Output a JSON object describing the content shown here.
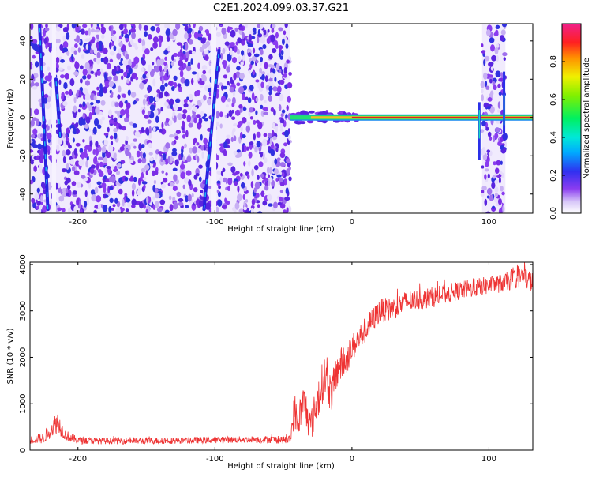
{
  "title": "C2E1.2024.099.03.37.G21",
  "chart_data": [
    {
      "type": "heatmap",
      "xlabel": "Height of straight line (km)",
      "ylabel": "Frequency (Hz)",
      "xlim": [
        -235,
        132
      ],
      "ylim": [
        -50,
        49
      ],
      "xticks": [
        -200,
        -100,
        0,
        100
      ],
      "yticks": [
        -40,
        -20,
        0,
        20,
        40
      ],
      "grid": false,
      "colorbar": {
        "label": "Normalized spectral amplitude",
        "range": [
          0,
          1
        ],
        "ticks": [
          "0.0",
          "0.2",
          "0.4",
          "0.6",
          "0.8"
        ],
        "tick_values": [
          0,
          0.2,
          0.4,
          0.6,
          0.8
        ],
        "colormap": "rainbow (white-violet-blue-cyan-green-yellow-red-magenta)"
      },
      "features": {
        "noise_regions_x": [
          [
            -235,
            -45
          ],
          [
            95,
            112
          ]
        ],
        "signal_line_freq_hz": 0,
        "signal_line_x": [
          -45,
          132
        ],
        "diagonal_streaks": [
          {
            "x": [
              -222,
              -228
            ],
            "y": [
              -48,
              48
            ]
          },
          {
            "x": [
              -108,
              -97
            ],
            "y": [
              -48,
              35
            ]
          },
          {
            "x": [
              -213,
              -216
            ],
            "y": [
              -10,
              20
            ]
          }
        ]
      }
    },
    {
      "type": "line",
      "xlabel": "Height of straight line (km)",
      "ylabel": "SNR (10 * v/v)",
      "xlim": [
        -235,
        132
      ],
      "ylim": [
        0,
        4050
      ],
      "xticks": [
        -200,
        -100,
        0,
        100
      ],
      "yticks": [
        0,
        1000,
        2000,
        3000,
        4000
      ],
      "grid": false,
      "color": "#ee3333",
      "series": [
        {
          "x": [
            -235,
            -225,
            -215,
            -210,
            -205,
            -200,
            -180,
            -150,
            -120,
            -100,
            -80,
            -60,
            -45,
            -42,
            -40,
            -35,
            -30,
            -25,
            -20,
            -15,
            -10,
            -5,
            0,
            10,
            20,
            30,
            40,
            60,
            80,
            100,
            110,
            120,
            125,
            132
          ],
          "y": [
            220,
            260,
            620,
            350,
            260,
            210,
            200,
            200,
            210,
            220,
            230,
            230,
            220,
            900,
            600,
            1000,
            500,
            1100,
            1600,
            1200,
            1800,
            1900,
            2200,
            2600,
            3000,
            3050,
            3200,
            3300,
            3450,
            3550,
            3600,
            3700,
            3750,
            3600
          ],
          "noise": [
            80,
            120,
            250,
            120,
            100,
            80,
            70,
            70,
            70,
            70,
            70,
            80,
            90,
            400,
            350,
            450,
            350,
            450,
            450,
            400,
            400,
            350,
            300,
            280,
            260,
            250,
            240,
            220,
            200,
            200,
            200,
            220,
            250,
            220
          ]
        }
      ]
    }
  ]
}
